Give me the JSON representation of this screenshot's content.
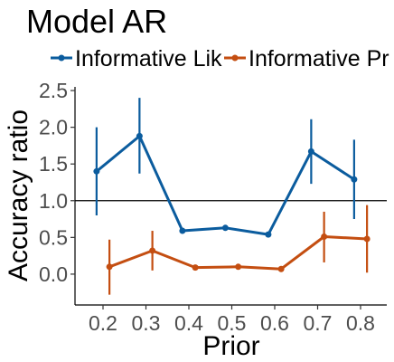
{
  "chart_data": {
    "type": "line",
    "title": "Model AR",
    "xlabel": "Prior",
    "ylabel": "Accuracy ratio",
    "categories": [
      "0.2",
      "0.3",
      "0.4",
      "0.5",
      "0.6",
      "0.7",
      "0.8"
    ],
    "ylim": [
      -0.42,
      2.55
    ],
    "y_ticks": [
      "0.0",
      "0.5",
      "1.0",
      "1.5",
      "2.0",
      "2.5"
    ],
    "reference_line": 1.0,
    "legend_position": "top",
    "grid": false,
    "series": [
      {
        "name": "Informative Lik",
        "color": "#0B5C9E",
        "x": [
          0.185,
          0.285,
          0.385,
          0.485,
          0.585,
          0.685,
          0.785
        ],
        "values": [
          1.4,
          1.88,
          0.59,
          0.63,
          0.54,
          1.67,
          1.29
        ],
        "lower": [
          0.8,
          1.37,
          null,
          null,
          null,
          1.23,
          0.75
        ],
        "upper": [
          2.0,
          2.4,
          null,
          null,
          null,
          2.11,
          1.83
        ]
      },
      {
        "name": "Informative Pr",
        "color": "#C44E11",
        "x": [
          0.215,
          0.315,
          0.415,
          0.515,
          0.615,
          0.715,
          0.815
        ],
        "values": [
          0.1,
          0.32,
          0.09,
          0.1,
          0.07,
          0.51,
          0.48
        ],
        "lower": [
          -0.28,
          0.05,
          null,
          null,
          null,
          0.16,
          0.02
        ],
        "upper": [
          0.47,
          0.59,
          null,
          null,
          null,
          0.85,
          0.94
        ]
      }
    ]
  }
}
